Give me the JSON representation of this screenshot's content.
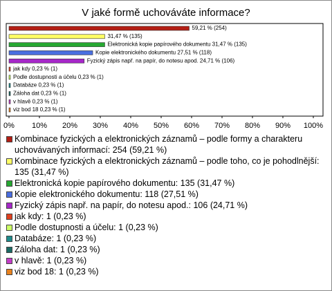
{
  "chart_data": {
    "type": "bar",
    "orientation": "horizontal",
    "title": "V jaké formě uchováváte informace?",
    "categories": [
      "Kombinace fyzických a elektronických záznamů – podle formy a charakteru uchovávaných informací: 254 (59,21 %)",
      "Kombinace fyzických a elektronických záznamů – podle toho, co je pohodlnější: 135 (31,47 %)",
      "Elektronická kopie papírového dokumentu: 135 (31,47 %)",
      "Kopie elektronického dokumentu: 118 (27,51 %)",
      "Fyzický zápis např. na papír, do notesu apod.: 106 (24,71 %)",
      "jak kdy: 1 (0,23 %)",
      "Podle dostupnosti a účelu: 1 (0,23 %)",
      "Databáze: 1 (0,23 %)",
      "Záloha dat: 1 (0,23 %)",
      "v hlavě: 1 (0,23 %)",
      "viz bod 18: 1 (0,23 %)"
    ],
    "values": [
      59.21,
      31.47,
      31.47,
      27.51,
      24.71,
      0.23,
      0.23,
      0.23,
      0.23,
      0.23,
      0.23
    ],
    "value_labels": [
      "59,21 % (254)",
      "31,47 % (135)",
      "Elektronická kopie papírového dokumentu 31,47 % (135)",
      "Kopie elektronického dokumentu 27,51 % (118)",
      "Fyzický zápis např. na papír, do notesu apod. 24,71 % (106)",
      "jak kdy 0,23 % (1)",
      "Podle dostupnosti a účelu 0,23 % (1)",
      "Databáze 0,23 % (1)",
      "Záloha dat 0,23 % (1)",
      "v hlavě 0,23 % (1)",
      "viz bod 18 0,23 % (1)"
    ],
    "colors": [
      "#b41e14",
      "#ffff66",
      "#26a832",
      "#4a6ee0",
      "#a628c8",
      "#e0401e",
      "#ccff66",
      "#1e8c8c",
      "#1a6a64",
      "#c43cc8",
      "#e8821e"
    ],
    "xlim": [
      0,
      100
    ],
    "xticks": [
      {
        "value": 0,
        "label": "0%"
      },
      {
        "value": 10,
        "label": "10%"
      },
      {
        "value": 20,
        "label": "20%"
      },
      {
        "value": 30,
        "label": "30%"
      },
      {
        "value": 40,
        "label": "40%"
      },
      {
        "value": 50,
        "label": "50%"
      },
      {
        "value": 60,
        "label": "60%"
      },
      {
        "value": 70,
        "label": "70%"
      },
      {
        "value": 80,
        "label": "80%"
      },
      {
        "value": 90,
        "label": "90%"
      },
      {
        "value": 100,
        "label": "100%"
      }
    ]
  }
}
